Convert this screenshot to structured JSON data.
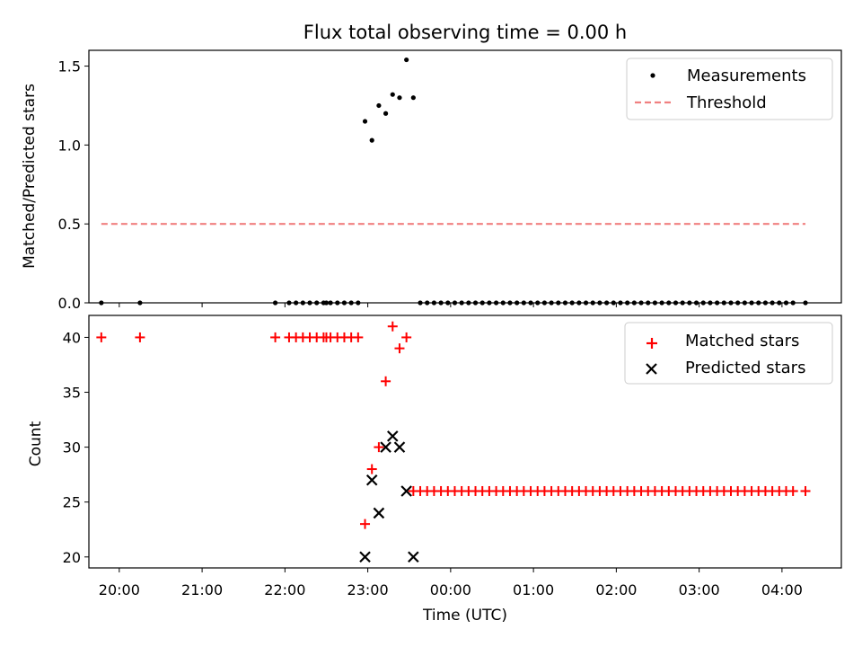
{
  "chart_data": [
    {
      "type": "scatter",
      "title": "Flux total observing time = 0.00 h",
      "xlabel": "",
      "ylabel": "Matched/Predicted stars",
      "xlim": [
        "19:38",
        "04:43"
      ],
      "ylim": [
        0,
        1.6
      ],
      "yticks": [
        "0.0",
        "0.5",
        "1.0",
        "1.5"
      ],
      "legend": {
        "position": "top-right",
        "entries": [
          "Measurements",
          "Threshold"
        ]
      },
      "colors": {
        "measurements": "#000000",
        "threshold": "#f08080"
      },
      "threshold": {
        "name": "Threshold",
        "value": 0.5,
        "x_start": "19:47",
        "x_end": "04:17"
      },
      "series": [
        {
          "name": "Measurements",
          "points": [
            [
              "19:47",
              0.0
            ],
            [
              "20:15",
              0.0
            ],
            [
              "21:53",
              0.0
            ],
            [
              "22:03",
              0.0
            ],
            [
              "22:08",
              0.0
            ],
            [
              "22:13",
              0.0
            ],
            [
              "22:18",
              0.0
            ],
            [
              "22:23",
              0.0
            ],
            [
              "22:28",
              0.0
            ],
            [
              "22:30",
              0.0
            ],
            [
              "22:33",
              0.0
            ],
            [
              "22:38",
              0.0
            ],
            [
              "22:43",
              0.0
            ],
            [
              "22:48",
              0.0
            ],
            [
              "22:53",
              0.0
            ],
            [
              "22:58",
              1.15
            ],
            [
              "23:03",
              1.03
            ],
            [
              "23:08",
              1.25
            ],
            [
              "23:13",
              1.2
            ],
            [
              "23:18",
              1.32
            ],
            [
              "23:23",
              1.3
            ],
            [
              "23:28",
              1.54
            ],
            [
              "23:33",
              1.3
            ],
            [
              "23:38",
              0.0
            ],
            [
              "23:43",
              0.0
            ],
            [
              "23:48",
              0.0
            ],
            [
              "23:53",
              0.0
            ],
            [
              "23:58",
              0.0
            ],
            [
              "00:03",
              0.0
            ],
            [
              "00:08",
              0.0
            ],
            [
              "00:13",
              0.0
            ],
            [
              "00:18",
              0.0
            ],
            [
              "00:23",
              0.0
            ],
            [
              "00:28",
              0.0
            ],
            [
              "00:33",
              0.0
            ],
            [
              "00:38",
              0.0
            ],
            [
              "00:43",
              0.0
            ],
            [
              "00:48",
              0.0
            ],
            [
              "00:53",
              0.0
            ],
            [
              "00:58",
              0.0
            ],
            [
              "01:03",
              0.0
            ],
            [
              "01:08",
              0.0
            ],
            [
              "01:13",
              0.0
            ],
            [
              "01:18",
              0.0
            ],
            [
              "01:23",
              0.0
            ],
            [
              "01:28",
              0.0
            ],
            [
              "01:33",
              0.0
            ],
            [
              "01:38",
              0.0
            ],
            [
              "01:43",
              0.0
            ],
            [
              "01:48",
              0.0
            ],
            [
              "01:53",
              0.0
            ],
            [
              "01:58",
              0.0
            ],
            [
              "02:03",
              0.0
            ],
            [
              "02:08",
              0.0
            ],
            [
              "02:13",
              0.0
            ],
            [
              "02:18",
              0.0
            ],
            [
              "02:23",
              0.0
            ],
            [
              "02:28",
              0.0
            ],
            [
              "02:33",
              0.0
            ],
            [
              "02:38",
              0.0
            ],
            [
              "02:43",
              0.0
            ],
            [
              "02:48",
              0.0
            ],
            [
              "02:53",
              0.0
            ],
            [
              "02:58",
              0.0
            ],
            [
              "03:03",
              0.0
            ],
            [
              "03:08",
              0.0
            ],
            [
              "03:13",
              0.0
            ],
            [
              "03:18",
              0.0
            ],
            [
              "03:23",
              0.0
            ],
            [
              "03:28",
              0.0
            ],
            [
              "03:33",
              0.0
            ],
            [
              "03:38",
              0.0
            ],
            [
              "03:43",
              0.0
            ],
            [
              "03:48",
              0.0
            ],
            [
              "03:53",
              0.0
            ],
            [
              "03:58",
              0.0
            ],
            [
              "04:03",
              0.0
            ],
            [
              "04:08",
              0.0
            ],
            [
              "04:17",
              0.0
            ]
          ]
        }
      ]
    },
    {
      "type": "scatter",
      "title": "",
      "xlabel": "Time (UTC)",
      "ylabel": "Count",
      "xlim": [
        "19:38",
        "04:43"
      ],
      "ylim": [
        19,
        42
      ],
      "xticks": [
        "20:00",
        "21:00",
        "22:00",
        "23:00",
        "00:00",
        "01:00",
        "02:00",
        "03:00",
        "04:00"
      ],
      "yticks": [
        "20",
        "25",
        "30",
        "35",
        "40"
      ],
      "legend": {
        "position": "top-right",
        "entries": [
          "Matched stars",
          "Predicted stars"
        ]
      },
      "colors": {
        "matched": "#ff0000",
        "predicted": "#000000"
      },
      "series": [
        {
          "name": "Matched stars",
          "marker": "+",
          "points": [
            [
              "19:47",
              40
            ],
            [
              "20:15",
              40
            ],
            [
              "21:53",
              40
            ],
            [
              "22:03",
              40
            ],
            [
              "22:08",
              40
            ],
            [
              "22:13",
              40
            ],
            [
              "22:18",
              40
            ],
            [
              "22:23",
              40
            ],
            [
              "22:28",
              40
            ],
            [
              "22:30",
              40
            ],
            [
              "22:33",
              40
            ],
            [
              "22:38",
              40
            ],
            [
              "22:43",
              40
            ],
            [
              "22:48",
              40
            ],
            [
              "22:53",
              40
            ],
            [
              "22:58",
              23
            ],
            [
              "23:03",
              28
            ],
            [
              "23:08",
              30
            ],
            [
              "23:13",
              36
            ],
            [
              "23:18",
              41
            ],
            [
              "23:23",
              39
            ],
            [
              "23:28",
              40
            ],
            [
              "23:33",
              26
            ],
            [
              "23:38",
              26
            ],
            [
              "23:43",
              26
            ],
            [
              "23:48",
              26
            ],
            [
              "23:53",
              26
            ],
            [
              "23:58",
              26
            ],
            [
              "00:03",
              26
            ],
            [
              "00:08",
              26
            ],
            [
              "00:13",
              26
            ],
            [
              "00:18",
              26
            ],
            [
              "00:23",
              26
            ],
            [
              "00:28",
              26
            ],
            [
              "00:33",
              26
            ],
            [
              "00:38",
              26
            ],
            [
              "00:43",
              26
            ],
            [
              "00:48",
              26
            ],
            [
              "00:53",
              26
            ],
            [
              "00:58",
              26
            ],
            [
              "01:03",
              26
            ],
            [
              "01:08",
              26
            ],
            [
              "01:13",
              26
            ],
            [
              "01:18",
              26
            ],
            [
              "01:23",
              26
            ],
            [
              "01:28",
              26
            ],
            [
              "01:33",
              26
            ],
            [
              "01:38",
              26
            ],
            [
              "01:43",
              26
            ],
            [
              "01:48",
              26
            ],
            [
              "01:53",
              26
            ],
            [
              "01:58",
              26
            ],
            [
              "02:03",
              26
            ],
            [
              "02:08",
              26
            ],
            [
              "02:13",
              26
            ],
            [
              "02:18",
              26
            ],
            [
              "02:23",
              26
            ],
            [
              "02:28",
              26
            ],
            [
              "02:33",
              26
            ],
            [
              "02:38",
              26
            ],
            [
              "02:43",
              26
            ],
            [
              "02:48",
              26
            ],
            [
              "02:53",
              26
            ],
            [
              "02:58",
              26
            ],
            [
              "03:03",
              26
            ],
            [
              "03:08",
              26
            ],
            [
              "03:13",
              26
            ],
            [
              "03:18",
              26
            ],
            [
              "03:23",
              26
            ],
            [
              "03:28",
              26
            ],
            [
              "03:33",
              26
            ],
            [
              "03:38",
              26
            ],
            [
              "03:43",
              26
            ],
            [
              "03:48",
              26
            ],
            [
              "03:53",
              26
            ],
            [
              "03:58",
              26
            ],
            [
              "04:03",
              26
            ],
            [
              "04:08",
              26
            ],
            [
              "04:17",
              26
            ]
          ]
        },
        {
          "name": "Predicted stars",
          "marker": "x",
          "points": [
            [
              "22:58",
              20
            ],
            [
              "23:03",
              27
            ],
            [
              "23:08",
              24
            ],
            [
              "23:13",
              30
            ],
            [
              "23:18",
              31
            ],
            [
              "23:23",
              30
            ],
            [
              "23:28",
              26
            ],
            [
              "23:33",
              20
            ]
          ]
        }
      ]
    }
  ]
}
